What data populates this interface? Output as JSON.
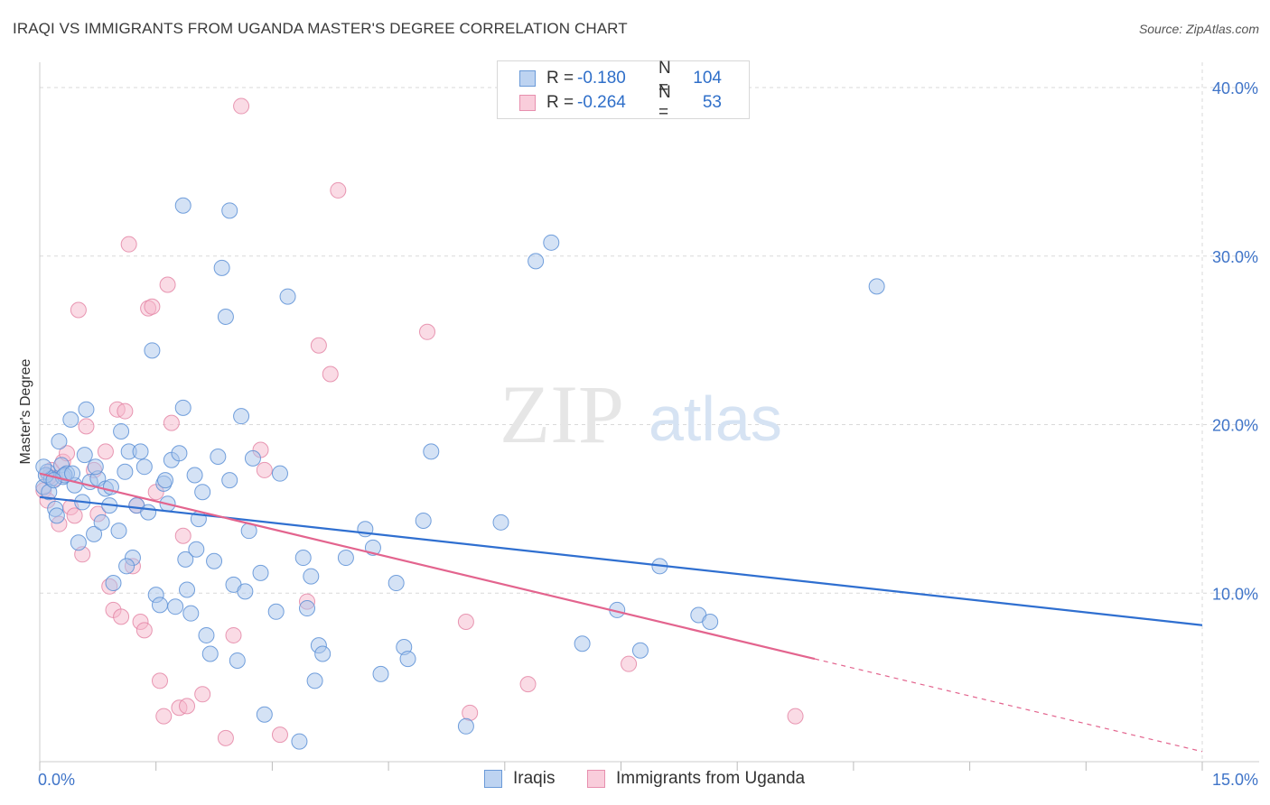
{
  "title": "IRAQI VS IMMIGRANTS FROM UGANDA MASTER'S DEGREE CORRELATION CHART",
  "source": "Source: ZipAtlas.com",
  "watermark": {
    "zip": "ZIP",
    "atlas": "atlas"
  },
  "legend": {
    "rows": [
      {
        "r_label": "R =",
        "r_value": "-0.180",
        "n_label": "N =",
        "n_value": "104"
      },
      {
        "r_label": "R =",
        "r_value": "-0.264",
        "n_label": "N =",
        "n_value": "53"
      }
    ]
  },
  "bottom_legend": {
    "series1": "Iraqis",
    "series2": "Immigrants from Uganda"
  },
  "colors": {
    "blue_fill": "#a9c6ec",
    "blue_stroke": "#5b8fd6",
    "blue_line": "#2f6fd0",
    "pink_fill": "#f5b8cb",
    "pink_stroke": "#e486a6",
    "pink_line": "#e3648e",
    "grid": "#d9d9d9",
    "tick_label": "#3f74c8"
  },
  "chart_data": {
    "type": "scatter",
    "title": "IRAQI VS IMMIGRANTS FROM UGANDA MASTER'S DEGREE CORRELATION CHART",
    "xlabel": "",
    "ylabel": "Master's Degree",
    "xlim": [
      0,
      15
    ],
    "ylim": [
      0,
      41.5
    ],
    "x_tick_labels": [
      "0.0%",
      "15.0%"
    ],
    "y_ticks": [
      10,
      20,
      30,
      40
    ],
    "y_tick_labels": [
      "10.0%",
      "20.0%",
      "30.0%",
      "40.0%"
    ],
    "grid": true,
    "series": [
      {
        "name": "Iraqis",
        "r": -0.18,
        "n": 104,
        "trend": {
          "x0": 0,
          "y0": 15.7,
          "x1": 15,
          "y1": 8.1
        },
        "points": [
          [
            0.05,
            16.3
          ],
          [
            0.1,
            17.2
          ],
          [
            0.15,
            16.8
          ],
          [
            0.2,
            15.0
          ],
          [
            0.25,
            19.0
          ],
          [
            0.28,
            17.6
          ],
          [
            0.3,
            16.9
          ],
          [
            0.35,
            17.1
          ],
          [
            0.4,
            20.3
          ],
          [
            0.45,
            16.4
          ],
          [
            0.5,
            13.0
          ],
          [
            0.55,
            15.4
          ],
          [
            0.6,
            20.9
          ],
          [
            0.65,
            16.6
          ],
          [
            0.7,
            13.5
          ],
          [
            0.75,
            16.8
          ],
          [
            0.8,
            14.2
          ],
          [
            0.85,
            16.2
          ],
          [
            0.9,
            15.2
          ],
          [
            0.95,
            10.6
          ],
          [
            1.05,
            19.6
          ],
          [
            1.1,
            17.2
          ],
          [
            1.15,
            18.4
          ],
          [
            1.2,
            12.1
          ],
          [
            1.25,
            15.2
          ],
          [
            1.3,
            18.4
          ],
          [
            1.35,
            17.5
          ],
          [
            1.4,
            14.8
          ],
          [
            1.45,
            24.4
          ],
          [
            1.5,
            9.9
          ],
          [
            1.55,
            9.3
          ],
          [
            1.6,
            16.5
          ],
          [
            1.65,
            15.3
          ],
          [
            1.7,
            17.9
          ],
          [
            1.75,
            9.2
          ],
          [
            1.8,
            18.3
          ],
          [
            1.85,
            21.0
          ],
          [
            1.9,
            10.2
          ],
          [
            1.95,
            8.8
          ],
          [
            2.0,
            17.0
          ],
          [
            2.05,
            14.4
          ],
          [
            2.1,
            16.0
          ],
          [
            2.15,
            7.5
          ],
          [
            2.2,
            6.4
          ],
          [
            2.25,
            11.9
          ],
          [
            2.3,
            18.1
          ],
          [
            2.35,
            29.3
          ],
          [
            2.4,
            26.4
          ],
          [
            2.45,
            16.7
          ],
          [
            2.5,
            10.5
          ],
          [
            2.55,
            6.0
          ],
          [
            2.6,
            20.5
          ],
          [
            2.65,
            10.1
          ],
          [
            2.7,
            13.7
          ],
          [
            2.75,
            18.0
          ],
          [
            2.85,
            11.2
          ],
          [
            2.9,
            2.8
          ],
          [
            3.05,
            8.9
          ],
          [
            3.1,
            17.1
          ],
          [
            3.2,
            27.6
          ],
          [
            3.35,
            1.2
          ],
          [
            3.4,
            12.1
          ],
          [
            3.45,
            9.1
          ],
          [
            3.5,
            11.0
          ],
          [
            3.55,
            4.8
          ],
          [
            3.6,
            6.9
          ],
          [
            3.65,
            6.4
          ],
          [
            3.95,
            12.1
          ],
          [
            4.2,
            13.8
          ],
          [
            4.3,
            12.7
          ],
          [
            4.4,
            5.2
          ],
          [
            4.6,
            10.6
          ],
          [
            4.7,
            6.8
          ],
          [
            4.75,
            6.1
          ],
          [
            4.95,
            14.3
          ],
          [
            5.05,
            18.4
          ],
          [
            5.5,
            2.1
          ],
          [
            5.95,
            14.2
          ],
          [
            6.4,
            29.7
          ],
          [
            6.6,
            30.8
          ],
          [
            7.0,
            7.0
          ],
          [
            7.45,
            9.0
          ],
          [
            7.75,
            6.6
          ],
          [
            8.0,
            11.6
          ],
          [
            8.5,
            8.7
          ],
          [
            8.65,
            8.3
          ],
          [
            10.8,
            28.2
          ],
          [
            0.08,
            17.0
          ],
          [
            0.12,
            16.0
          ],
          [
            0.22,
            14.6
          ],
          [
            0.32,
            17.0
          ],
          [
            0.42,
            17.1
          ],
          [
            0.58,
            18.2
          ],
          [
            0.72,
            17.5
          ],
          [
            0.92,
            16.3
          ],
          [
            1.02,
            13.7
          ],
          [
            1.12,
            11.6
          ],
          [
            1.62,
            16.7
          ],
          [
            1.88,
            12.0
          ],
          [
            2.02,
            12.6
          ],
          [
            2.45,
            32.7
          ],
          [
            1.85,
            33.0
          ],
          [
            0.05,
            17.5
          ],
          [
            0.18,
            16.7
          ]
        ]
      },
      {
        "name": "Immigrants from Uganda",
        "r": -0.264,
        "n": 53,
        "trend": {
          "x0": 0,
          "y0": 17.1,
          "x1": 10.0,
          "y1": 6.1,
          "dash_x1": 15,
          "dash_y1": 0.6
        },
        "points": [
          [
            0.05,
            16.1
          ],
          [
            0.1,
            15.5
          ],
          [
            0.15,
            17.3
          ],
          [
            0.2,
            16.8
          ],
          [
            0.25,
            14.1
          ],
          [
            0.3,
            17.8
          ],
          [
            0.35,
            18.3
          ],
          [
            0.4,
            15.1
          ],
          [
            0.45,
            14.6
          ],
          [
            0.5,
            26.8
          ],
          [
            0.55,
            12.3
          ],
          [
            0.6,
            19.9
          ],
          [
            0.7,
            17.3
          ],
          [
            0.75,
            14.7
          ],
          [
            0.85,
            18.4
          ],
          [
            0.9,
            10.4
          ],
          [
            0.95,
            9.0
          ],
          [
            1.0,
            20.9
          ],
          [
            1.05,
            8.6
          ],
          [
            1.1,
            20.8
          ],
          [
            1.15,
            30.7
          ],
          [
            1.2,
            11.6
          ],
          [
            1.25,
            15.2
          ],
          [
            1.3,
            8.3
          ],
          [
            1.35,
            7.8
          ],
          [
            1.4,
            26.9
          ],
          [
            1.45,
            27.0
          ],
          [
            1.5,
            16.0
          ],
          [
            1.55,
            4.8
          ],
          [
            1.6,
            2.7
          ],
          [
            1.65,
            28.3
          ],
          [
            1.7,
            20.1
          ],
          [
            1.8,
            3.2
          ],
          [
            1.85,
            13.4
          ],
          [
            1.9,
            3.3
          ],
          [
            2.1,
            4.0
          ],
          [
            2.4,
            1.4
          ],
          [
            2.5,
            7.5
          ],
          [
            2.6,
            38.9
          ],
          [
            2.85,
            18.5
          ],
          [
            2.9,
            17.3
          ],
          [
            3.1,
            1.6
          ],
          [
            3.45,
            9.5
          ],
          [
            3.6,
            24.7
          ],
          [
            3.75,
            23.0
          ],
          [
            3.85,
            33.9
          ],
          [
            5.0,
            25.5
          ],
          [
            5.5,
            8.3
          ],
          [
            5.55,
            2.9
          ],
          [
            6.3,
            4.6
          ],
          [
            7.6,
            5.8
          ],
          [
            9.75,
            2.7
          ],
          [
            0.12,
            16.9
          ]
        ]
      }
    ]
  }
}
